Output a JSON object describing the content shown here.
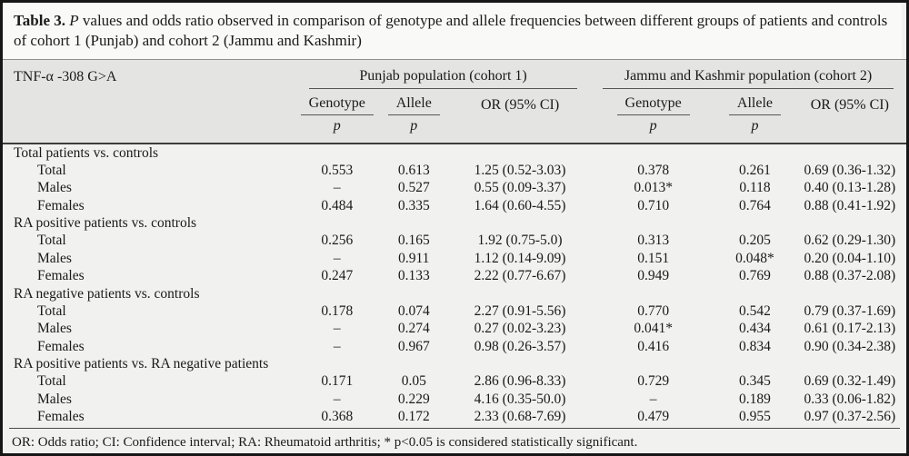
{
  "caption": {
    "label": "Table 3.",
    "p_italic": "P",
    "text": "values and odds ratio observed in comparison of genotype and allele frequencies between different groups of patients and controls of cohort 1 (Punjab) and cohort 2 (Jammu and Kashmir)"
  },
  "header": {
    "gene": "TNF-α -308 G>A",
    "groups": [
      {
        "label": "Punjab population (cohort 1)"
      },
      {
        "label": "Jammu and Kashmir population (cohort 2)"
      }
    ],
    "subcols": {
      "genotype": "Genotype",
      "allele": "Allele",
      "or": "OR (95% CI)",
      "p": "p"
    }
  },
  "sections": [
    {
      "label": "Total patients vs. controls",
      "rows": [
        {
          "label": "Total",
          "values": [
            "0.553",
            "0.613",
            "1.25 (0.52-3.03)",
            "0.378",
            "0.261",
            "0.69 (0.36-1.32)"
          ]
        },
        {
          "label": "Males",
          "values": [
            "–",
            "0.527",
            "0.55 (0.09-3.37)",
            "0.013*",
            "0.118",
            "0.40 (0.13-1.28)"
          ]
        },
        {
          "label": "Females",
          "values": [
            "0.484",
            "0.335",
            "1.64 (0.60-4.55)",
            "0.710",
            "0.764",
            "0.88 (0.41-1.92)"
          ]
        }
      ]
    },
    {
      "label": "RA positive patients vs. controls",
      "rows": [
        {
          "label": "Total",
          "values": [
            "0.256",
            "0.165",
            "1.92 (0.75-5.0)",
            "0.313",
            "0.205",
            "0.62 (0.29-1.30)"
          ]
        },
        {
          "label": "Males",
          "values": [
            "–",
            "0.911",
            "1.12 (0.14-9.09)",
            "0.151",
            "0.048*",
            "0.20 (0.04-1.10)"
          ]
        },
        {
          "label": "Females",
          "values": [
            "0.247",
            "0.133",
            "2.22 (0.77-6.67)",
            "0.949",
            "0.769",
            "0.88 (0.37-2.08)"
          ]
        }
      ]
    },
    {
      "label": "RA negative patients vs. controls",
      "rows": [
        {
          "label": "Total",
          "values": [
            "0.178",
            "0.074",
            "2.27 (0.91-5.56)",
            "0.770",
            "0.542",
            "0.79 (0.37-1.69)"
          ]
        },
        {
          "label": "Males",
          "values": [
            "–",
            "0.274",
            "0.27 (0.02-3.23)",
            "0.041*",
            "0.434",
            "0.61 (0.17-2.13)"
          ]
        },
        {
          "label": "Females",
          "values": [
            "–",
            "0.967",
            "0.98 (0.26-3.57)",
            "0.416",
            "0.834",
            "0.90 (0.34-2.38)"
          ]
        }
      ]
    },
    {
      "label": "RA positive patients vs. RA negative patients",
      "rows": [
        {
          "label": "Total",
          "values": [
            "0.171",
            "0.05",
            "2.86 (0.96-8.33)",
            "0.729",
            "0.345",
            "0.69 (0.32-1.49)"
          ]
        },
        {
          "label": "Males",
          "values": [
            "–",
            "0.229",
            "4.16 (0.35-50.0)",
            "–",
            "0.189",
            "0.33 (0.06-1.82)"
          ]
        },
        {
          "label": "Females",
          "values": [
            "0.368",
            "0.172",
            "2.33 (0.68-7.69)",
            "0.479",
            "0.955",
            "0.97 (0.37-2.56)"
          ]
        }
      ]
    }
  ],
  "footnote": "OR: Odds ratio; CI: Confidence interval; RA: Rheumatoid arthritis; * p<0.05 is considered statistically significant.",
  "colors": {
    "caption_bg": "#f9f9f7",
    "header_bg": "#e4e4e2",
    "body_bg": "#f1f1ef",
    "border": "#161616"
  }
}
